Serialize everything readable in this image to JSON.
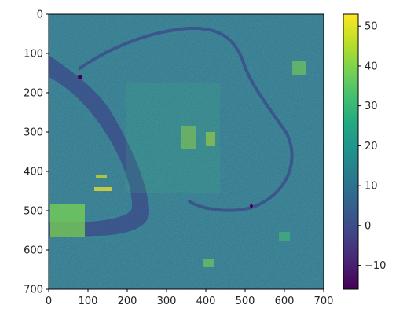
{
  "chart_data": {
    "type": "heatmap",
    "title": "",
    "xlabel": "",
    "ylabel": "",
    "x_range": [
      0,
      700
    ],
    "y_range": [
      0,
      700
    ],
    "y_inverted": true,
    "x_ticks": [
      0,
      100,
      200,
      300,
      400,
      500,
      600,
      700
    ],
    "y_ticks": [
      0,
      100,
      200,
      300,
      400,
      500,
      600,
      700
    ],
    "x_tick_labels": [
      "0",
      "100",
      "200",
      "300",
      "400",
      "500",
      "600",
      "700"
    ],
    "y_tick_labels": [
      "0",
      "100",
      "200",
      "300",
      "400",
      "500",
      "600",
      "700"
    ],
    "colormap": "viridis",
    "colorbar": {
      "min": -16,
      "max": 53,
      "ticks": [
        -10,
        0,
        10,
        20,
        30,
        40,
        50
      ],
      "tick_labels": [
        "−10",
        "0",
        "10",
        "20",
        "30",
        "40",
        "50"
      ],
      "placement": "right"
    },
    "grid": false,
    "image_description_values": {
      "background_level": 8,
      "river_level": 2,
      "bright_patch_levels": [
        28,
        35,
        45
      ]
    }
  }
}
